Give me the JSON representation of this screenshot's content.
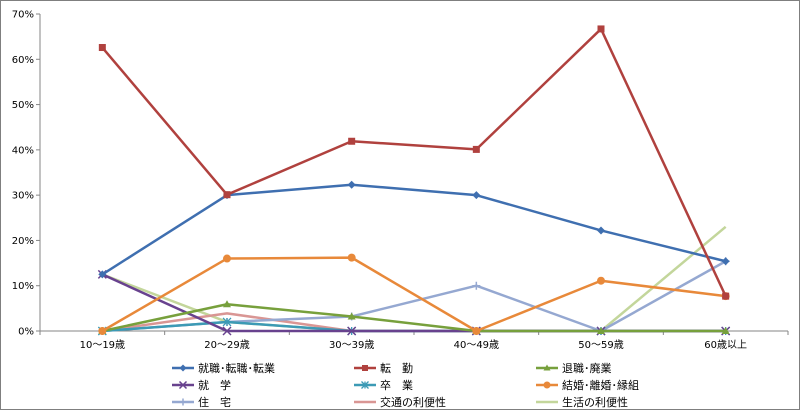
{
  "chart_data": {
    "type": "line",
    "title": "",
    "xlabel": "",
    "ylabel": "",
    "categories": [
      "10～19歳",
      "20～29歳",
      "30～39歳",
      "40～49歳",
      "50～59歳",
      "60歳以上"
    ],
    "y_ticks": [
      "0%",
      "10%",
      "20%",
      "30%",
      "40%",
      "50%",
      "60%",
      "70%"
    ],
    "ylim": [
      0,
      70
    ],
    "grid": false,
    "legend_position": "bottom",
    "series": [
      {
        "name": "就職･転職･転業",
        "color": "#3f6fb0",
        "marker": "diamond",
        "values": [
          12.5,
          30,
          32.3,
          30,
          22.2,
          15.4
        ]
      },
      {
        "name": "転　勤",
        "color": "#b0413e",
        "marker": "square",
        "values": [
          62.6,
          30.1,
          41.9,
          40.1,
          66.7,
          7.7
        ]
      },
      {
        "name": "退職･廃業",
        "color": "#77a03c",
        "marker": "triangle",
        "values": [
          0,
          5.9,
          3.2,
          0,
          0,
          0
        ]
      },
      {
        "name": "就　学",
        "color": "#68428e",
        "marker": "x",
        "values": [
          12.5,
          0,
          0,
          0,
          0,
          0
        ]
      },
      {
        "name": "卒　業",
        "color": "#3c9ab5",
        "marker": "star",
        "values": [
          0,
          2,
          0,
          0,
          0,
          0
        ]
      },
      {
        "name": "結婚･離婚･縁組",
        "color": "#e8893a",
        "marker": "circle",
        "values": [
          0,
          16,
          16.2,
          0,
          11.1,
          7.7
        ]
      },
      {
        "name": "住　宅",
        "color": "#95a8d1",
        "marker": "plus",
        "values": [
          0,
          2,
          3.2,
          10,
          0,
          15.4
        ]
      },
      {
        "name": "交通の利便性",
        "color": "#d99694",
        "marker": "none",
        "values": [
          0,
          3.9,
          0,
          0,
          0,
          0
        ]
      },
      {
        "name": "生活の利便性",
        "color": "#c3d69b",
        "marker": "none",
        "values": [
          12.5,
          2,
          0,
          0,
          0,
          23
        ]
      }
    ]
  }
}
